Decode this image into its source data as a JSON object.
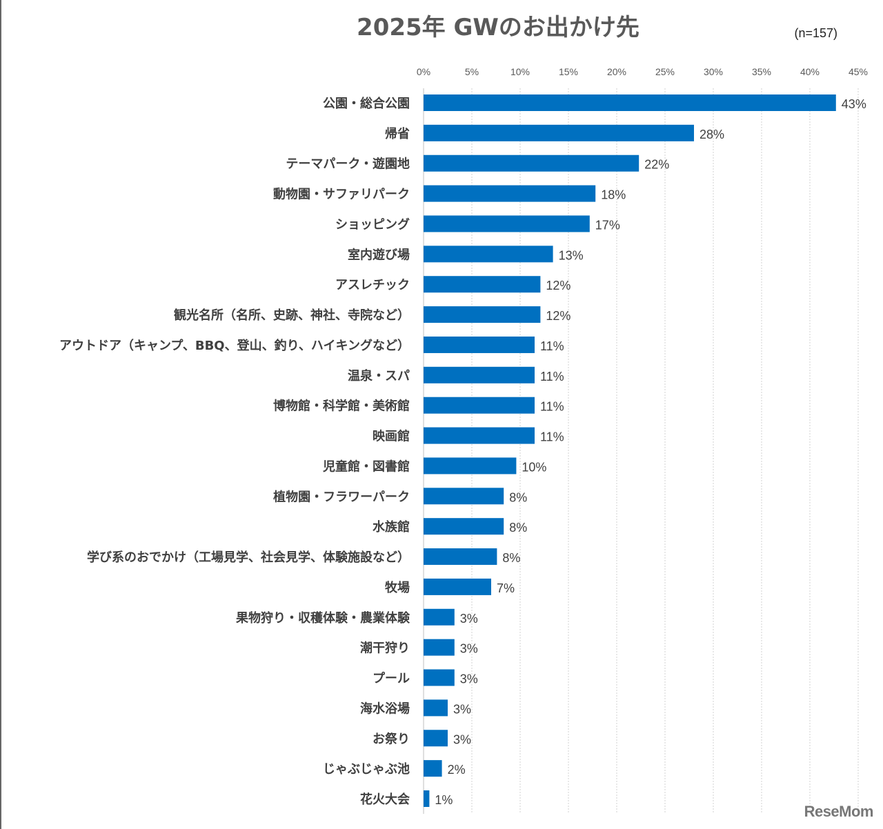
{
  "chart_data": {
    "type": "bar",
    "orientation": "horizontal",
    "title": "2025年 GWのお出かけ先",
    "subtitle": "(n=157)",
    "xlabel": "",
    "ylabel": "",
    "xlim": [
      0,
      45
    ],
    "x_ticks": [
      "0%",
      "5%",
      "10%",
      "15%",
      "20%",
      "25%",
      "30%",
      "35%",
      "40%",
      "45%"
    ],
    "grid": true,
    "color": "#0070C0",
    "categories": [
      "公園・総合公園",
      "帰省",
      "テーマパーク・遊園地",
      "動物園・サファリパーク",
      "ショッピング",
      "室内遊び場",
      "アスレチック",
      "観光名所（名所、史跡、神社、寺院など）",
      "アウトドア（キャンプ、BBQ、登山、釣り、ハイキングなど）",
      "温泉・スパ",
      "博物館・科学館・美術館",
      "映画館",
      "児童館・図書館",
      "植物園・フラワーパーク",
      "水族館",
      "学び系のおでかけ（工場見学、社会見学、体験施設など）",
      "牧場",
      "果物狩り・収穫体験・農業体験",
      "潮干狩り",
      "プール",
      "海水浴場",
      "お祭り",
      "じゃぶじゃぶ池",
      "花火大会"
    ],
    "values": [
      42.7,
      28.0,
      22.3,
      17.8,
      17.2,
      13.4,
      12.1,
      12.1,
      11.5,
      11.5,
      11.5,
      11.5,
      9.6,
      8.3,
      8.3,
      7.6,
      7.0,
      3.2,
      3.2,
      3.2,
      2.5,
      2.5,
      1.9,
      0.6
    ],
    "data_labels": [
      "43%",
      "28%",
      "22%",
      "18%",
      "17%",
      "13%",
      "12%",
      "12%",
      "11%",
      "11%",
      "11%",
      "11%",
      "10%",
      "8%",
      "8%",
      "8%",
      "7%",
      "3%",
      "3%",
      "3%",
      "3%",
      "3%",
      "2%",
      "1%"
    ]
  },
  "watermark": "ReseMom"
}
